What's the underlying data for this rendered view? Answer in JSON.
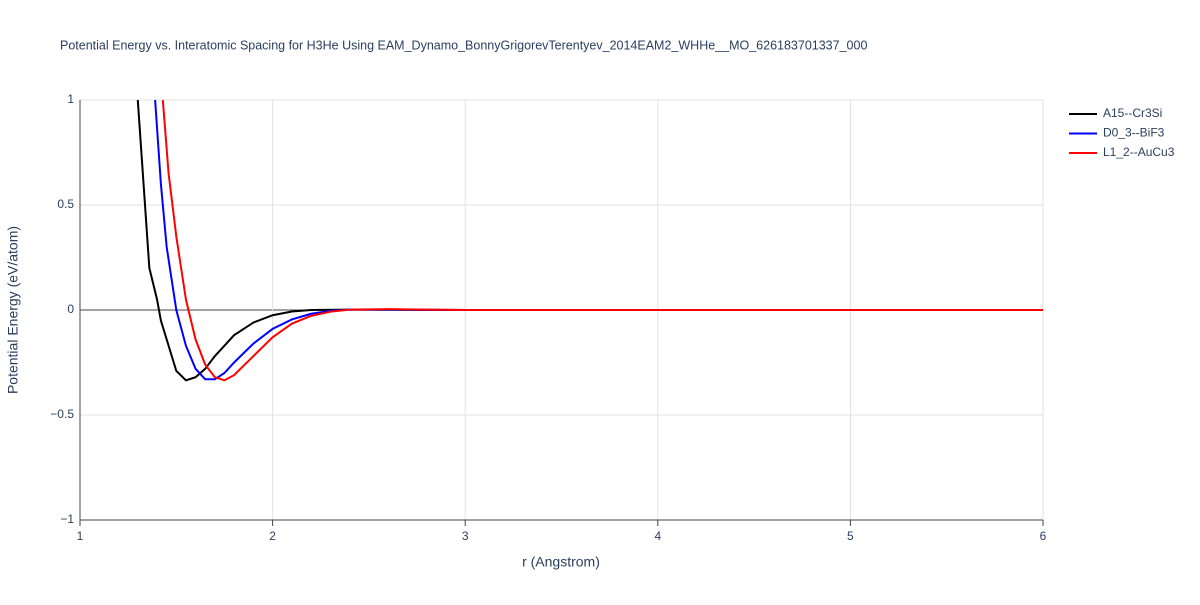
{
  "chart_data": {
    "type": "line",
    "title": "Potential Energy vs. Interatomic Spacing for H3He Using EAM_Dynamo_BonnyGrigorevTerentyev_2014EAM2_WHHe__MO_626183701337_000",
    "x_label": "r (Angstrom)",
    "y_label": "Potential Energy (eV/atom)",
    "xlim": [
      1,
      6
    ],
    "xticks": [
      1,
      2,
      3,
      4,
      5,
      6
    ],
    "ylim": [
      -1,
      1
    ],
    "yticks": [
      {
        "value": -1,
        "label": "−1"
      },
      {
        "value": -0.5,
        "label": "−0.5"
      },
      0,
      0.5,
      1
    ],
    "grid": true,
    "legend": "top-right",
    "series": [
      {
        "name": "A15--Cr3Si",
        "color": "#000000",
        "x": [
          1.3,
          1.33,
          1.36,
          1.4,
          1.42,
          1.45,
          1.5,
          1.55,
          1.6,
          1.65,
          1.7,
          1.75,
          1.8,
          1.9,
          2.0,
          2.1,
          2.2,
          2.4,
          3.0,
          6.0
        ],
        "values": [
          1.0,
          0.6,
          0.2,
          0.05,
          -0.05,
          -0.14,
          -0.29,
          -0.335,
          -0.32,
          -0.28,
          -0.22,
          -0.17,
          -0.12,
          -0.06,
          -0.025,
          -0.007,
          0,
          0.002,
          0,
          0
        ]
      },
      {
        "name": "D0_3--BiF3",
        "color": "#0000ff",
        "x": [
          1.39,
          1.42,
          1.45,
          1.5,
          1.55,
          1.6,
          1.65,
          1.7,
          1.75,
          1.8,
          1.9,
          2.0,
          2.1,
          2.2,
          2.3,
          2.4,
          2.6,
          3.0,
          6.0
        ],
        "values": [
          1.0,
          0.6,
          0.3,
          0.0,
          -0.17,
          -0.28,
          -0.33,
          -0.33,
          -0.3,
          -0.25,
          -0.16,
          -0.09,
          -0.045,
          -0.018,
          -0.004,
          0.002,
          0.002,
          0,
          0
        ]
      },
      {
        "name": "L1_2--AuCu3",
        "color": "#ff0000",
        "x": [
          1.43,
          1.46,
          1.5,
          1.55,
          1.6,
          1.65,
          1.7,
          1.75,
          1.8,
          1.9,
          2.0,
          2.1,
          2.2,
          2.3,
          2.4,
          2.6,
          2.8,
          3.0,
          6.0
        ],
        "values": [
          1.0,
          0.65,
          0.35,
          0.05,
          -0.14,
          -0.26,
          -0.32,
          -0.335,
          -0.31,
          -0.22,
          -0.13,
          -0.065,
          -0.028,
          -0.008,
          0.002,
          0.004,
          0.002,
          0,
          0
        ]
      }
    ]
  }
}
